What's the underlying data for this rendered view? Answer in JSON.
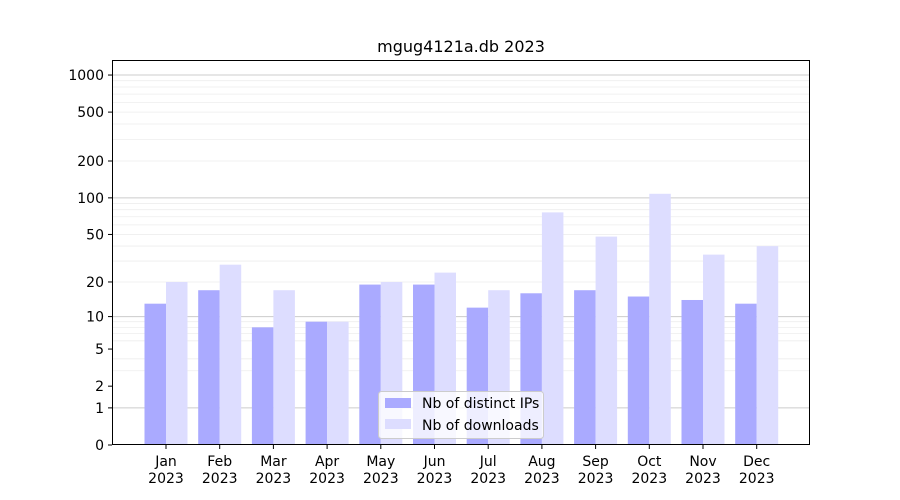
{
  "chart_data": {
    "type": "bar",
    "title": "mgug4121a.db 2023",
    "xlabel": "",
    "ylabel": "",
    "yscale": "log",
    "ylim": [
      0,
      1300
    ],
    "yticks": [
      "0",
      "1",
      "2",
      "5",
      "10",
      "20",
      "50",
      "100",
      "200",
      "500",
      "1000"
    ],
    "ytick_values": [
      0,
      1,
      2,
      5,
      10,
      20,
      50,
      100,
      200,
      500,
      1000
    ],
    "categories": [
      "Jan\n2023",
      "Feb\n2023",
      "Mar\n2023",
      "Apr\n2023",
      "May\n2023",
      "Jun\n2023",
      "Jul\n2023",
      "Aug\n2023",
      "Sep\n2023",
      "Oct\n2023",
      "Nov\n2023",
      "Dec\n2023"
    ],
    "series": [
      {
        "name": "Nb of distinct IPs",
        "color": "#aaaaff",
        "values": [
          13,
          17,
          8,
          9,
          19,
          19,
          12,
          16,
          17,
          15,
          14,
          13
        ]
      },
      {
        "name": "Nb of downloads",
        "color": "#ddddff",
        "values": [
          20,
          28,
          17,
          9,
          20,
          24,
          17,
          76,
          48,
          108,
          34,
          40
        ]
      }
    ],
    "legend": "bottom-center",
    "grid": true
  }
}
